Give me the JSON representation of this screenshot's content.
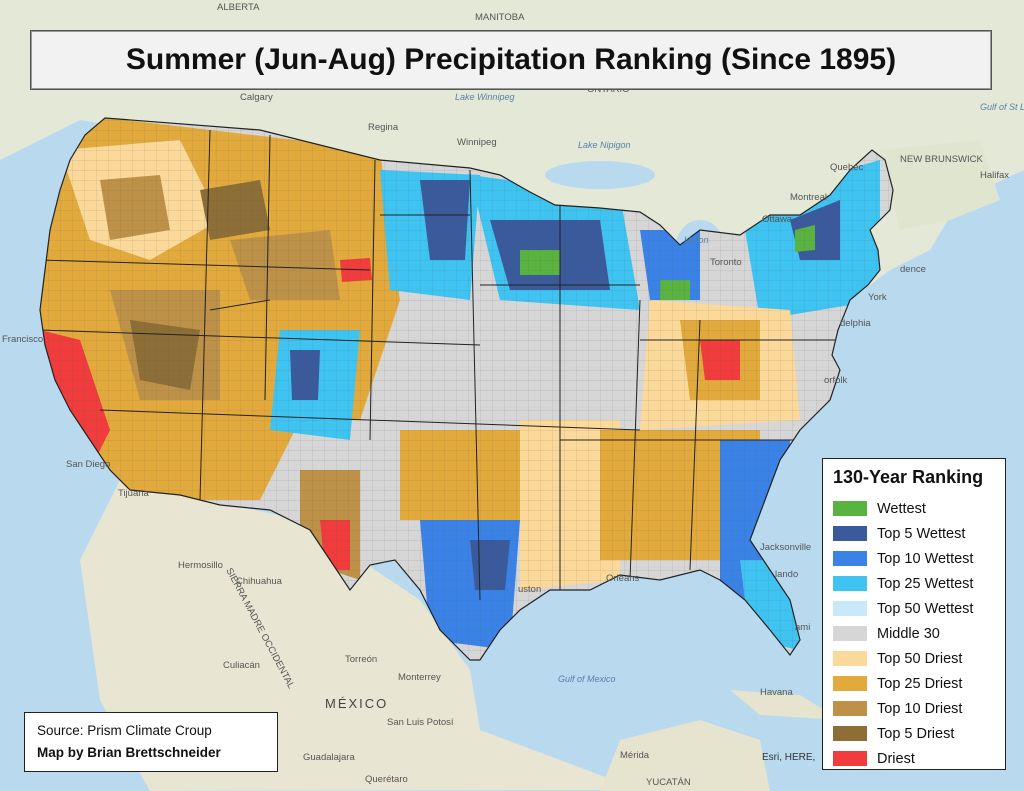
{
  "title": "Summer (Jun-Aug) Precipitation Ranking (Since 1895)",
  "legend": {
    "title": "130-Year Ranking",
    "items": [
      {
        "label": "Wettest",
        "color": "#5ab340"
      },
      {
        "label": "Top 5 Wettest",
        "color": "#3a5a9c"
      },
      {
        "label": "Top 10 Wettest",
        "color": "#3b82e6"
      },
      {
        "label": "Top 25 Wettest",
        "color": "#3fc4f2"
      },
      {
        "label": "Top 50 Wettest",
        "color": "#c9e8f8"
      },
      {
        "label": "Middle 30",
        "color": "#d6d6d6"
      },
      {
        "label": "Top 50 Driest",
        "color": "#fbd99a"
      },
      {
        "label": "Top 25 Driest",
        "color": "#e2aa3c"
      },
      {
        "label": "Top 10 Driest",
        "color": "#bd9248"
      },
      {
        "label": "Top 5 Driest",
        "color": "#8c6e36"
      },
      {
        "label": "Driest",
        "color": "#f03c3c"
      }
    ]
  },
  "credits": {
    "source": "Source: Prism Climate Croup",
    "author": "Map by Brian Brettschneider"
  },
  "attribution": "Esri, HERE,",
  "places": [
    "Calgary",
    "Regina",
    "Winnipeg",
    "Lake Winnipeg",
    "MANITOBA",
    "ONTARIO",
    "ALBERTA",
    "Lake Nipigon",
    "Quebec",
    "Montreal",
    "Ottawa",
    "Toronto",
    "Halifax",
    "NEW BRUNSWICK",
    "Huron",
    "Gulf of St Lawrence",
    "Tijuana",
    "San Diego",
    "Francisco",
    "Hermosillo",
    "Chihuahua",
    "Torreón",
    "Monterrey",
    "MÉXICO",
    "Culiacán",
    "San Luis Potosí",
    "Guadalajara",
    "Querétaro",
    "Havana",
    "Mérida",
    "YUCATÁN",
    "Gulf of Mexico",
    "Jacksonville",
    "Orleans",
    "uston",
    "delphia",
    "orfolk",
    "York",
    "dence",
    "lando",
    "ami",
    "SIERRA MADRE OCCIDENTAL"
  ]
}
